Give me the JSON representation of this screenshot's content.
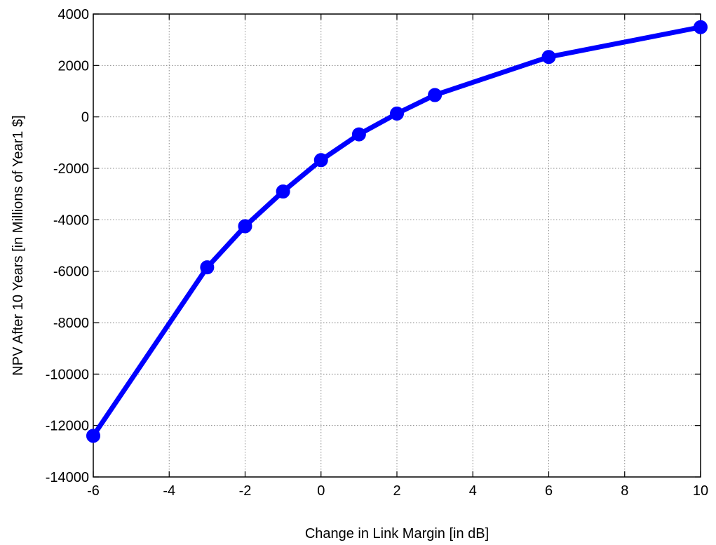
{
  "chart_data": {
    "type": "line",
    "title": "",
    "xlabel": "Change in Link Margin [in dB]",
    "ylabel": "NPV After 10 Years [in Millions of Year1 $]",
    "xlim": [
      -6,
      10
    ],
    "ylim": [
      -14000,
      4000
    ],
    "xticks": [
      -6,
      -4,
      -2,
      0,
      2,
      4,
      6,
      8,
      10
    ],
    "yticks": [
      -14000,
      -12000,
      -10000,
      -8000,
      -6000,
      -4000,
      -2000,
      0,
      2000,
      4000
    ],
    "grid": true,
    "legend": "none",
    "series": [
      {
        "color": "#0000ff",
        "marker": "circle",
        "x": [
          -6,
          -3,
          -2,
          -1,
          0,
          1,
          2,
          3,
          6,
          10
        ],
        "y": [
          -12400,
          -5850,
          -4250,
          -2900,
          -1680,
          -680,
          130,
          850,
          2330,
          3490
        ]
      }
    ]
  }
}
